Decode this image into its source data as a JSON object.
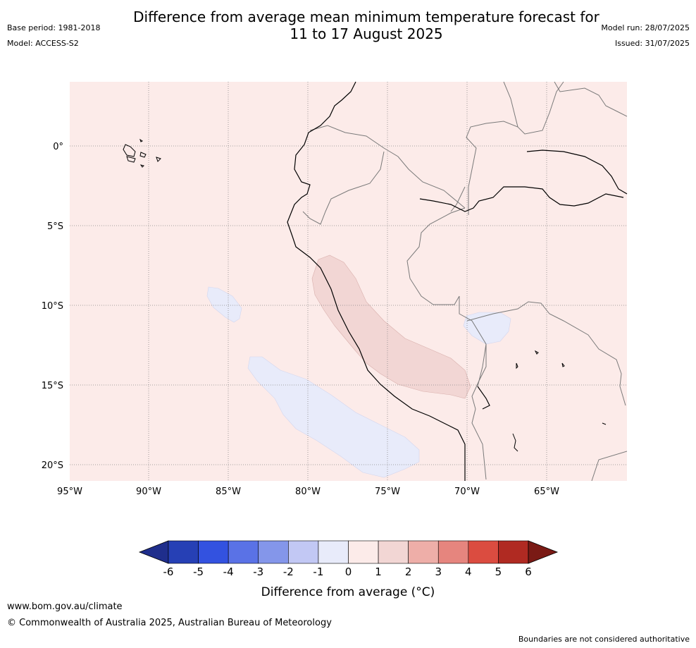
{
  "header": {
    "title_line1": "Difference from average mean minimum temperature forecast for",
    "title_line2": "11 to 17 August 2025",
    "base_period": "Base period: 1981-2018",
    "model": "Model: ACCESS-S2",
    "model_run": "Model run: 28/07/2025",
    "issued": "Issued: 31/07/2025"
  },
  "map": {
    "longitude_labels": [
      "95°W",
      "90°W",
      "85°W",
      "80°W",
      "75°W",
      "70°W",
      "65°W"
    ],
    "latitude_labels": [
      "0°",
      "5°S",
      "10°S",
      "15°S",
      "20°S"
    ],
    "background_color": "#fcebe9",
    "regions": [
      {
        "category": "1 to 2",
        "color": "#f2d6d4",
        "location": "Peruvian coast"
      },
      {
        "category": "-1 to 0",
        "color": "#e8ebfa",
        "location": "ocean off southern Peru"
      },
      {
        "category": "-1 to 0",
        "color": "#e8ebfa",
        "location": "ocean west of Peru"
      },
      {
        "category": "-1 to 0",
        "color": "#e8ebfa",
        "location": "western Brazil / Bolivia"
      }
    ]
  },
  "colorbar": {
    "tick_labels": [
      "-6",
      "-5",
      "-4",
      "-3",
      "-2",
      "-1",
      "0",
      "1",
      "2",
      "3",
      "4",
      "5",
      "6"
    ],
    "colors": [
      "#1f2e8c",
      "#2640b5",
      "#3352e0",
      "#5a72e6",
      "#8496ea",
      "#c2c8f4",
      "#e8ebfa",
      "#fcebe9",
      "#f2d6d4",
      "#eeaea8",
      "#e6857e",
      "#db4c40",
      "#b02a22",
      "#7a1a15"
    ],
    "label": "Difference from average (°C)"
  },
  "footer": {
    "url": "www.bom.gov.au/climate",
    "copyright": "© Commonwealth of Australia 2025, Australian Bureau of Meteorology",
    "note": "Boundaries are not considered authoritative"
  }
}
